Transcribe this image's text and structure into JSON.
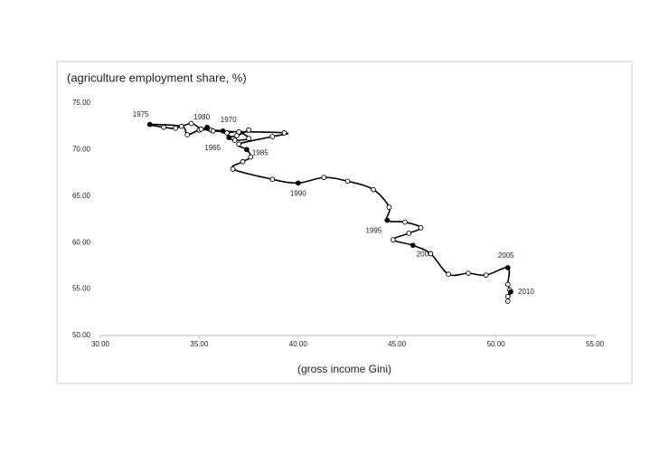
{
  "chart_data": {
    "type": "connected-scatter",
    "title": "(agriculture employment share, %)",
    "x_label": "(gross income Gini)",
    "color": "#000000",
    "x": [
      37.5,
      36.9,
      36.5,
      36.8,
      37.5,
      37.0,
      36.4,
      36.2,
      35.6,
      35.0,
      34.4,
      34.1,
      32.5,
      33.2,
      33.8,
      34.6,
      35.1,
      35.4,
      35.7,
      39.3,
      38.7,
      37.0,
      37.4,
      37.6,
      37.2,
      36.7,
      38.7,
      40.0,
      41.3,
      42.5,
      43.8,
      44.6,
      44.5,
      45.4,
      46.2,
      45.6,
      44.8,
      45.8,
      46.7,
      47.6,
      48.6,
      49.5,
      50.6,
      50.6,
      50.7,
      50.6,
      50.6,
      50.75
    ],
    "y": [
      72.1,
      71.5,
      71.3,
      71.0,
      71.2,
      71.9,
      71.8,
      72.0,
      72.1,
      72.1,
      71.6,
      72.5,
      72.7,
      72.4,
      72.3,
      72.8,
      72.2,
      72.4,
      72.0,
      71.8,
      71.4,
      70.6,
      70.0,
      69.2,
      68.7,
      67.9,
      66.8,
      66.4,
      67.0,
      66.6,
      65.7,
      63.8,
      62.4,
      62.2,
      61.6,
      61.0,
      60.3,
      59.7,
      58.8,
      56.6,
      56.7,
      56.5,
      57.3,
      55.5,
      54.9,
      54.2,
      53.7,
      54.7
    ],
    "point_labels": [
      null,
      null,
      "1965",
      null,
      null,
      null,
      null,
      "1970",
      null,
      null,
      null,
      null,
      "1975",
      null,
      null,
      null,
      null,
      "1980",
      null,
      null,
      null,
      null,
      "1985",
      null,
      null,
      null,
      null,
      "1990",
      null,
      null,
      null,
      null,
      "1995",
      null,
      null,
      null,
      null,
      "2000",
      null,
      null,
      null,
      null,
      "2005",
      null,
      null,
      null,
      null,
      "2010"
    ],
    "xlim": [
      30,
      55
    ],
    "ylim": [
      50,
      75
    ],
    "xticks": [
      {
        "value": 30,
        "label": "30.00"
      },
      {
        "value": 35,
        "label": "35.00"
      },
      {
        "value": 40,
        "label": "40.00"
      },
      {
        "value": 45,
        "label": "45.00"
      },
      {
        "value": 50,
        "label": "50.00"
      },
      {
        "value": 55,
        "label": "55.00"
      }
    ],
    "yticks": [
      {
        "value": 50,
        "label": "50.00"
      },
      {
        "value": 55,
        "label": "55.00"
      },
      {
        "value": 60,
        "label": "60.00"
      },
      {
        "value": 65,
        "label": "65.00"
      },
      {
        "value": 70,
        "label": "70.00"
      },
      {
        "value": 75,
        "label": "75.00"
      }
    ]
  }
}
